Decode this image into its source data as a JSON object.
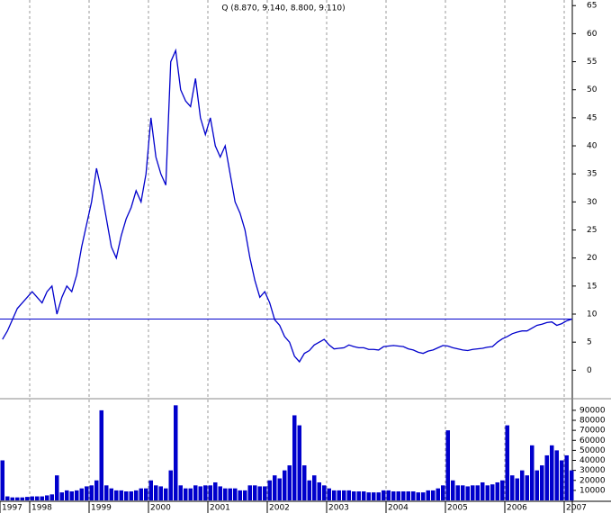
{
  "chart_data": [
    {
      "type": "line",
      "title": "Q (8.870, 9.140, 8.800, 9.110)",
      "color": "#0000cc",
      "values": [
        5.5,
        7,
        9,
        11,
        12,
        13,
        14,
        13,
        12,
        14,
        15,
        10,
        13,
        15,
        14,
        17,
        22,
        26,
        30,
        36,
        32,
        27,
        22,
        20,
        24,
        27,
        29,
        32,
        30,
        35,
        45,
        38,
        35,
        33,
        55,
        57,
        50,
        48,
        47,
        52,
        45,
        42,
        45,
        40,
        38,
        40,
        35,
        30,
        28,
        25,
        20,
        16,
        13,
        14,
        12,
        9,
        8,
        6,
        5,
        2.5,
        1.5,
        3,
        3.5,
        4.5,
        5,
        5.5,
        4.5,
        3.8,
        3.9,
        4,
        4.5,
        4.2,
        4,
        4,
        3.7,
        3.7,
        3.6,
        4.2,
        4.3,
        4.4,
        4.3,
        4.2,
        3.8,
        3.6,
        3.2,
        3,
        3.4,
        3.6,
        4,
        4.4,
        4.3,
        4,
        3.8,
        3.6,
        3.5,
        3.7,
        3.8,
        3.9,
        4.1,
        4.2,
        5,
        5.6,
        6,
        6.5,
        6.8,
        7,
        7,
        7.5,
        8,
        8.2,
        8.5,
        8.6,
        8,
        8.3,
        8.8,
        9.1
      ],
      "hline": 9.11,
      "ylim": [
        -4.6,
        66
      ],
      "yticks": [
        0,
        5,
        10,
        15,
        20,
        25,
        30,
        35,
        40,
        45,
        50,
        55,
        60,
        65
      ],
      "grid": true
    },
    {
      "type": "bar",
      "color": "#0000cc",
      "categories": [
        "1997",
        null,
        null,
        null,
        null,
        null,
        "1998",
        null,
        null,
        null,
        null,
        null,
        null,
        null,
        null,
        null,
        null,
        null,
        "1999",
        null,
        null,
        null,
        null,
        null,
        null,
        null,
        null,
        null,
        null,
        null,
        "2000",
        null,
        null,
        null,
        null,
        null,
        null,
        null,
        null,
        null,
        null,
        null,
        "2001",
        null,
        null,
        null,
        null,
        null,
        null,
        null,
        null,
        null,
        null,
        null,
        "2002",
        null,
        null,
        null,
        null,
        null,
        null,
        null,
        null,
        null,
        null,
        null,
        "2003",
        null,
        null,
        null,
        null,
        null,
        null,
        null,
        null,
        null,
        null,
        null,
        "2004",
        null,
        null,
        null,
        null,
        null,
        null,
        null,
        null,
        null,
        null,
        null,
        "2005",
        null,
        null,
        null,
        null,
        null,
        null,
        null,
        null,
        null,
        null,
        null,
        "2006",
        null,
        null,
        null,
        null,
        null,
        null,
        null,
        null,
        null,
        null,
        null,
        "2007",
        null
      ],
      "values": [
        40000,
        4000,
        3000,
        3000,
        3000,
        3500,
        4000,
        4000,
        4000,
        5000,
        6000,
        25000,
        8000,
        10000,
        9000,
        10000,
        12000,
        14000,
        15000,
        20000,
        90000,
        15000,
        12000,
        10000,
        10000,
        9000,
        9000,
        10000,
        12000,
        12000,
        20000,
        15000,
        14000,
        12000,
        30000,
        95000,
        15000,
        12000,
        12000,
        15000,
        14000,
        15000,
        15000,
        18000,
        14000,
        12000,
        12000,
        12000,
        10000,
        10000,
        15000,
        15000,
        14000,
        14000,
        20000,
        25000,
        22000,
        30000,
        35000,
        85000,
        75000,
        35000,
        20000,
        25000,
        18000,
        15000,
        12000,
        10000,
        10000,
        10000,
        10000,
        9000,
        9000,
        9000,
        8000,
        8000,
        8000,
        10000,
        10000,
        9000,
        9000,
        9000,
        9000,
        9000,
        8000,
        8000,
        10000,
        10000,
        12000,
        15000,
        70000,
        20000,
        15000,
        15000,
        14000,
        15000,
        15000,
        18000,
        15000,
        16000,
        18000,
        20000,
        75000,
        25000,
        22000,
        30000,
        25000,
        55000,
        30000,
        35000,
        45000,
        55000,
        50000,
        40000,
        45000,
        30000
      ],
      "ylim": [
        0,
        98000
      ],
      "yticks": [
        10000,
        20000,
        30000,
        40000,
        50000,
        60000,
        70000,
        80000,
        90000
      ]
    }
  ]
}
